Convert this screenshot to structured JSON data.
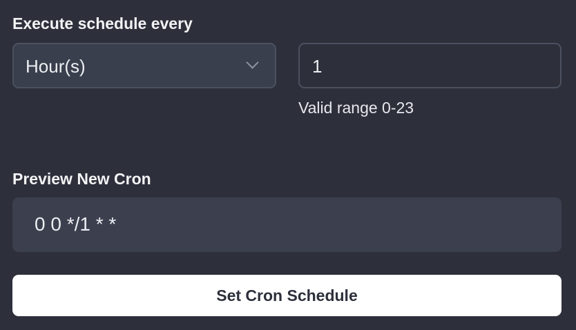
{
  "interval_label": "Execute schedule every",
  "unit_select": {
    "value": "Hour(s)"
  },
  "interval_input": {
    "value": "1",
    "hint": "Valid range 0-23"
  },
  "preview": {
    "label": "Preview New Cron",
    "value": "0 0 */1 * *"
  },
  "submit_label": "Set Cron Schedule"
}
